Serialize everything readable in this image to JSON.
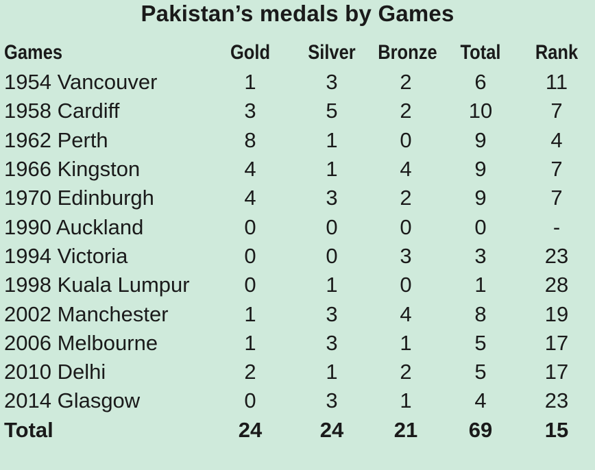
{
  "title": "Pakistan’s medals by Games",
  "headers": {
    "games": "Games",
    "gold": "Gold",
    "silver": "Silver",
    "bronze": "Bronze",
    "total": "Total",
    "rank": "Rank"
  },
  "rows": [
    {
      "games": "1954 Vancouver",
      "gold": "1",
      "silver": "3",
      "bronze": "2",
      "total": "6",
      "rank": "11"
    },
    {
      "games": "1958 Cardiff",
      "gold": "3",
      "silver": "5",
      "bronze": "2",
      "total": "10",
      "rank": "7"
    },
    {
      "games": "1962 Perth",
      "gold": "8",
      "silver": "1",
      "bronze": "0",
      "total": "9",
      "rank": "4"
    },
    {
      "games": "1966 Kingston",
      "gold": "4",
      "silver": "1",
      "bronze": "4",
      "total": "9",
      "rank": "7"
    },
    {
      "games": "1970 Edinburgh",
      "gold": "4",
      "silver": "3",
      "bronze": "2",
      "total": "9",
      "rank": "7"
    },
    {
      "games": "1990 Auckland",
      "gold": "0",
      "silver": "0",
      "bronze": "0",
      "total": "0",
      "rank": "-"
    },
    {
      "games": "1994 Victoria",
      "gold": "0",
      "silver": "0",
      "bronze": "3",
      "total": "3",
      "rank": "23"
    },
    {
      "games": "1998 Kuala Lumpur",
      "gold": "0",
      "silver": "1",
      "bronze": "0",
      "total": "1",
      "rank": "28"
    },
    {
      "games": "2002 Manchester",
      "gold": "1",
      "silver": "3",
      "bronze": "4",
      "total": "8",
      "rank": "19"
    },
    {
      "games": "2006 Melbourne",
      "gold": "1",
      "silver": "3",
      "bronze": "1",
      "total": "5",
      "rank": "17"
    },
    {
      "games": "2010 Delhi",
      "gold": "2",
      "silver": "1",
      "bronze": "2",
      "total": "5",
      "rank": "17"
    },
    {
      "games": "2014 Glasgow",
      "gold": "0",
      "silver": "3",
      "bronze": "1",
      "total": "4",
      "rank": "23"
    }
  ],
  "totals": {
    "games": "Total",
    "gold": "24",
    "silver": "24",
    "bronze": "21",
    "total": "69",
    "rank": "15"
  }
}
